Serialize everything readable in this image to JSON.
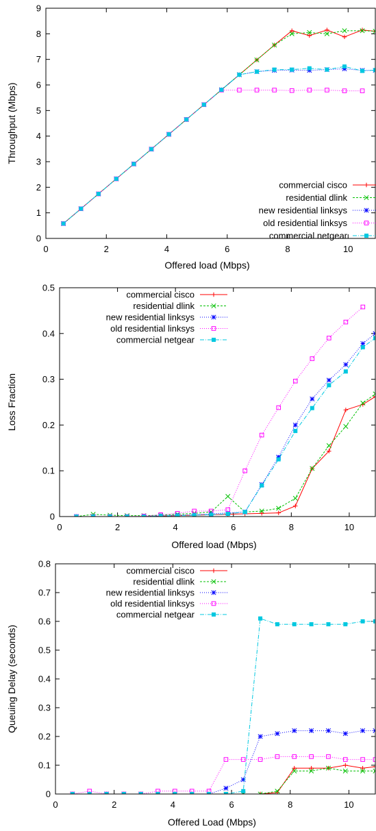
{
  "chart_data": [
    {
      "type": "line",
      "title": "",
      "xlabel": "Offered load (Mbps)",
      "ylabel": "Throughput (Mbps)",
      "xlim": [
        0,
        10.9
      ],
      "ylim": [
        0,
        9
      ],
      "xticks": [
        0,
        2,
        4,
        6,
        8,
        10
      ],
      "yticks": [
        0,
        1,
        2,
        3,
        4,
        5,
        6,
        7,
        8,
        9
      ],
      "ytick_labels": [
        "0",
        "1",
        "2",
        "3",
        "4",
        "5",
        "6",
        "7",
        "8",
        "9"
      ],
      "grid": false,
      "legend_position": "bottom-right",
      "series": [
        {
          "name": "commercial cisco",
          "color": "#ff0000",
          "marker": "plus",
          "dash": "",
          "x": [
            0.58,
            1.16,
            1.74,
            2.33,
            2.91,
            3.49,
            4.07,
            4.65,
            5.23,
            5.81,
            6.4,
            6.98,
            7.56,
            8.14,
            8.72,
            9.3,
            9.88,
            10.47,
            10.9
          ],
          "y": [
            0.58,
            1.16,
            1.74,
            2.33,
            2.91,
            3.49,
            4.07,
            4.65,
            5.23,
            5.81,
            6.4,
            6.98,
            7.56,
            8.12,
            7.93,
            8.15,
            7.88,
            8.15,
            8.1
          ]
        },
        {
          "name": "residential dlink",
          "color": "#00c000",
          "marker": "x",
          "dash": "3,2",
          "x": [
            0.58,
            1.16,
            1.74,
            2.33,
            2.91,
            3.49,
            4.07,
            4.65,
            5.23,
            5.81,
            6.4,
            6.98,
            7.56,
            8.14,
            8.72,
            9.3,
            9.88,
            10.47,
            10.9
          ],
          "y": [
            0.58,
            1.16,
            1.74,
            2.33,
            2.91,
            3.49,
            4.07,
            4.65,
            5.23,
            5.81,
            6.4,
            6.98,
            7.56,
            8.0,
            8.05,
            8.0,
            8.12,
            8.12,
            8.1
          ]
        },
        {
          "name": "new residential linksys",
          "color": "#0000ff",
          "marker": "star",
          "dash": "1,2",
          "x": [
            0.58,
            1.16,
            1.74,
            2.33,
            2.91,
            3.49,
            4.07,
            4.65,
            5.23,
            5.81,
            6.4,
            6.98,
            7.56,
            8.14,
            8.72,
            9.3,
            9.88,
            10.47,
            10.9
          ],
          "y": [
            0.58,
            1.16,
            1.74,
            2.33,
            2.91,
            3.49,
            4.07,
            4.65,
            5.23,
            5.81,
            6.4,
            6.52,
            6.57,
            6.58,
            6.57,
            6.6,
            6.63,
            6.57,
            6.57
          ]
        },
        {
          "name": "old residential linksys",
          "color": "#ff00ff",
          "marker": "square-open",
          "dash": "1,2",
          "x": [
            0.58,
            1.16,
            1.74,
            2.33,
            2.91,
            3.49,
            4.07,
            4.65,
            5.23,
            5.81,
            6.4,
            6.98,
            7.56,
            8.14,
            8.72,
            9.3,
            9.88,
            10.47
          ],
          "y": [
            0.58,
            1.16,
            1.74,
            2.33,
            2.91,
            3.49,
            4.07,
            4.65,
            5.23,
            5.8,
            5.8,
            5.8,
            5.8,
            5.78,
            5.8,
            5.8,
            5.77,
            5.77
          ]
        },
        {
          "name": "commercial netgear",
          "color": "#00c8e0",
          "marker": "square-filled",
          "dash": "6,2,1,2",
          "x": [
            0.58,
            1.16,
            1.74,
            2.33,
            2.91,
            3.49,
            4.07,
            4.65,
            5.23,
            5.81,
            6.4,
            6.98,
            7.56,
            8.14,
            8.72,
            9.3,
            9.88,
            10.47,
            10.9
          ],
          "y": [
            0.58,
            1.16,
            1.74,
            2.33,
            2.91,
            3.49,
            4.07,
            4.65,
            5.23,
            5.81,
            6.4,
            6.52,
            6.6,
            6.6,
            6.65,
            6.6,
            6.72,
            6.55,
            6.58
          ]
        }
      ]
    },
    {
      "type": "line",
      "title": "",
      "xlabel": "Offered load (Mbps)",
      "ylabel": "Loss Fraction",
      "xlim": [
        0,
        10.9
      ],
      "ylim": [
        0,
        0.5
      ],
      "xticks": [
        0,
        2,
        4,
        6,
        8,
        10
      ],
      "yticks": [
        0,
        0.1,
        0.2,
        0.3,
        0.4,
        0.5
      ],
      "ytick_labels": [
        "0",
        "0.1",
        "0.2",
        "0.3",
        "0.4",
        "0.5"
      ],
      "grid": false,
      "legend_position": "top-left",
      "series": [
        {
          "name": "commercial cisco",
          "color": "#ff0000",
          "marker": "plus",
          "dash": "",
          "x": [
            0.58,
            1.16,
            1.74,
            2.33,
            2.91,
            3.49,
            4.07,
            4.65,
            5.23,
            5.81,
            6.4,
            6.98,
            7.56,
            8.14,
            8.72,
            9.3,
            9.88,
            10.47,
            10.9
          ],
          "y": [
            0.0,
            0.0,
            0.0,
            0.0,
            0.0,
            0.001,
            0.002,
            0.003,
            0.004,
            0.005,
            0.006,
            0.007,
            0.008,
            0.023,
            0.105,
            0.143,
            0.233,
            0.245,
            0.262
          ]
        },
        {
          "name": "residential dlink",
          "color": "#00c000",
          "marker": "x",
          "dash": "3,2",
          "x": [
            0.58,
            1.16,
            1.74,
            2.33,
            2.91,
            3.49,
            4.07,
            4.65,
            5.23,
            5.81,
            6.4,
            6.98,
            7.56,
            8.14,
            8.72,
            9.3,
            9.88,
            10.47,
            10.9
          ],
          "y": [
            0.0,
            0.005,
            0.003,
            0.002,
            0.002,
            0.003,
            0.005,
            0.007,
            0.01,
            0.044,
            0.01,
            0.012,
            0.018,
            0.04,
            0.105,
            0.155,
            0.197,
            0.248,
            0.268
          ]
        },
        {
          "name": "new residential linksys",
          "color": "#0000ff",
          "marker": "star",
          "dash": "1,2",
          "x": [
            0.58,
            1.16,
            1.74,
            2.33,
            2.91,
            3.49,
            4.07,
            4.65,
            5.23,
            5.81,
            6.4,
            6.98,
            7.56,
            8.14,
            8.72,
            9.3,
            9.88,
            10.47,
            10.9
          ],
          "y": [
            0.0,
            0.0,
            0.0,
            0.0,
            0.0,
            0.002,
            0.003,
            0.004,
            0.006,
            0.008,
            0.01,
            0.07,
            0.13,
            0.2,
            0.257,
            0.298,
            0.332,
            0.378,
            0.4
          ]
        },
        {
          "name": "old residential linksys",
          "color": "#ff00ff",
          "marker": "square-open",
          "dash": "1,2",
          "x": [
            0.58,
            1.16,
            1.74,
            2.33,
            2.91,
            3.49,
            4.07,
            4.65,
            5.23,
            5.81,
            6.4,
            6.98,
            7.56,
            8.14,
            8.72,
            9.3,
            9.88,
            10.47
          ],
          "y": [
            0.0,
            0.0,
            0.0,
            0.0,
            0.001,
            0.004,
            0.007,
            0.012,
            0.012,
            0.015,
            0.1,
            0.178,
            0.238,
            0.296,
            0.345,
            0.39,
            0.425,
            0.458
          ]
        },
        {
          "name": "commercial netgear",
          "color": "#00c8e0",
          "marker": "square-filled",
          "dash": "6,2,1,2",
          "x": [
            0.58,
            1.16,
            1.74,
            2.33,
            2.91,
            3.49,
            4.07,
            4.65,
            5.23,
            5.81,
            6.4,
            6.98,
            7.56,
            8.14,
            8.72,
            9.3,
            9.88,
            10.47,
            10.9
          ],
          "y": [
            0.0,
            0.0,
            0.0,
            0.0,
            0.0,
            0.001,
            0.002,
            0.003,
            0.004,
            0.006,
            0.01,
            0.068,
            0.125,
            0.187,
            0.237,
            0.287,
            0.317,
            0.37,
            0.39
          ]
        }
      ]
    },
    {
      "type": "line",
      "title": "",
      "xlabel": "Offered Load (Mbps)",
      "ylabel": "Queuing Delay (seconds)",
      "xlim": [
        0,
        10.9
      ],
      "ylim": [
        0,
        0.8
      ],
      "xticks": [
        0,
        2,
        4,
        6,
        8,
        10
      ],
      "yticks": [
        0,
        0.1,
        0.2,
        0.3,
        0.4,
        0.5,
        0.6,
        0.7,
        0.8
      ],
      "ytick_labels": [
        "0",
        "0.1",
        "0.2",
        "0.3",
        "0.4",
        "0.5",
        "0.6",
        "0.7",
        "0.8"
      ],
      "grid": false,
      "legend_position": "top-left",
      "series": [
        {
          "name": "commercial cisco",
          "color": "#ff0000",
          "marker": "plus",
          "dash": "",
          "x": [
            0.58,
            1.16,
            1.74,
            2.33,
            2.91,
            3.49,
            4.07,
            4.65,
            5.23,
            5.81,
            6.4,
            6.98,
            7.56,
            8.14,
            8.72,
            9.3,
            9.88,
            10.47,
            10.9
          ],
          "y": [
            0,
            0,
            0,
            0,
            0,
            0,
            0,
            0,
            0,
            0,
            0,
            0,
            0.005,
            0.09,
            0.09,
            0.09,
            0.1,
            0.09,
            0.095
          ]
        },
        {
          "name": "residential dlink",
          "color": "#00c000",
          "marker": "x",
          "dash": "3,2",
          "x": [
            0.58,
            1.16,
            1.74,
            2.33,
            2.91,
            3.49,
            4.07,
            4.65,
            5.23,
            5.81,
            6.4,
            6.98,
            7.56,
            8.14,
            8.72,
            9.3,
            9.88,
            10.47,
            10.9
          ],
          "y": [
            0,
            0,
            0,
            0,
            0,
            0,
            0,
            0,
            0,
            0,
            0,
            0,
            0.01,
            0.08,
            0.08,
            0.09,
            0.08,
            0.08,
            0.08
          ]
        },
        {
          "name": "new residential linksys",
          "color": "#0000ff",
          "marker": "star",
          "dash": "1,2",
          "x": [
            0.58,
            1.16,
            1.74,
            2.33,
            2.91,
            3.49,
            4.07,
            4.65,
            5.23,
            5.81,
            6.4,
            6.98,
            7.56,
            8.14,
            8.72,
            9.3,
            9.88,
            10.47,
            10.9
          ],
          "y": [
            0,
            0,
            0,
            0,
            0,
            0,
            0,
            0,
            0,
            0.02,
            0.05,
            0.2,
            0.21,
            0.22,
            0.22,
            0.22,
            0.21,
            0.22,
            0.22
          ]
        },
        {
          "name": "old residential linksys",
          "color": "#ff00ff",
          "marker": "square-open",
          "dash": "1,2",
          "x": [
            0.58,
            1.16,
            1.74,
            2.33,
            2.91,
            3.49,
            4.07,
            4.65,
            5.23,
            5.81,
            6.4,
            6.98,
            7.56,
            8.14,
            8.72,
            9.3,
            9.88,
            10.47,
            10.9
          ],
          "y": [
            0,
            0.01,
            0,
            0,
            0,
            0.01,
            0.01,
            0.01,
            0.01,
            0.12,
            0.12,
            0.12,
            0.13,
            0.13,
            0.13,
            0.13,
            0.12,
            0.12,
            0.12
          ]
        },
        {
          "name": "commercial netgear",
          "color": "#00c8e0",
          "marker": "square-filled",
          "dash": "6,2,1,2",
          "x": [
            0.58,
            1.16,
            1.74,
            2.33,
            2.91,
            3.49,
            4.07,
            4.65,
            5.23,
            5.81,
            6.4,
            6.98,
            7.56,
            8.14,
            8.72,
            9.3,
            9.88,
            10.47,
            10.9
          ],
          "y": [
            0,
            0,
            0,
            0,
            0,
            0,
            0,
            0,
            0,
            0,
            0.01,
            0.61,
            0.59,
            0.59,
            0.59,
            0.59,
            0.59,
            0.6,
            0.6
          ]
        }
      ]
    }
  ]
}
